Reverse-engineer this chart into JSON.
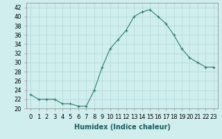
{
  "x": [
    0,
    1,
    2,
    3,
    4,
    5,
    6,
    7,
    8,
    9,
    10,
    11,
    12,
    13,
    14,
    15,
    16,
    17,
    18,
    19,
    20,
    21,
    22,
    23
  ],
  "y": [
    23,
    22,
    22,
    22,
    21,
    21,
    20.5,
    20.5,
    24,
    29,
    33,
    35,
    37,
    40,
    41,
    41.5,
    40,
    38.5,
    36,
    33,
    31,
    30,
    29,
    29
  ],
  "line_color": "#2e7d6e",
  "marker": "+",
  "marker_color": "#2e7d6e",
  "bg_color": "#d0eeee",
  "grid_color": "#b0d8d8",
  "xlabel": "Humidex (Indice chaleur)",
  "ylim": [
    20,
    43
  ],
  "xlim": [
    -0.5,
    23.5
  ],
  "yticks": [
    20,
    22,
    24,
    26,
    28,
    30,
    32,
    34,
    36,
    38,
    40,
    42
  ],
  "xticks": [
    0,
    1,
    2,
    3,
    4,
    5,
    6,
    7,
    8,
    9,
    10,
    11,
    12,
    13,
    14,
    15,
    16,
    17,
    18,
    19,
    20,
    21,
    22,
    23
  ],
  "xtick_labels": [
    "0",
    "1",
    "2",
    "3",
    "4",
    "5",
    "6",
    "7",
    "8",
    "9",
    "10",
    "11",
    "12",
    "13",
    "14",
    "15",
    "16",
    "17",
    "18",
    "19",
    "20",
    "21",
    "22",
    "23"
  ],
  "label_fontsize": 7,
  "tick_fontsize": 6
}
